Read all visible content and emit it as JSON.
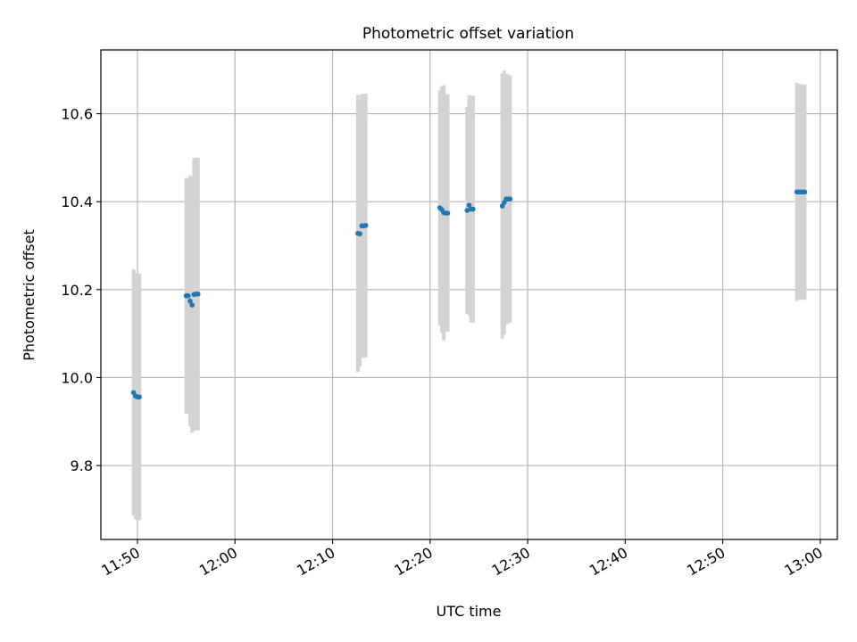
{
  "chart_data": {
    "type": "scatter",
    "title": "Photometric offset variation",
    "xlabel": "UTC time",
    "ylabel": "Photometric offset",
    "x_unit": "minutes",
    "xlim": [
      "11:46:15",
      "13:01:45"
    ],
    "ylim": [
      9.632,
      10.745
    ],
    "x_ticks": [
      "11:50",
      "12:00",
      "12:10",
      "12:20",
      "12:30",
      "12:40",
      "12:50",
      "13:00"
    ],
    "y_ticks": [
      "9.8",
      "10.0",
      "10.2",
      "10.4",
      "10.6"
    ],
    "grid": true,
    "series": [
      {
        "marker_color": "#1f77b4",
        "errorbar_color": "#d3d3d3",
        "points": [
          {
            "x": "11:49:36",
            "y": 9.966,
            "err": 0.28
          },
          {
            "x": "11:49:48",
            "y": 9.958,
            "err": 0.28
          },
          {
            "x": "11:50:00",
            "y": 9.956,
            "err": 0.28
          },
          {
            "x": "11:50:12",
            "y": 9.956,
            "err": 0.28
          },
          {
            "x": "11:55:00",
            "y": 10.186,
            "err": 0.268
          },
          {
            "x": "11:55:12",
            "y": 10.186,
            "err": 0.268
          },
          {
            "x": "11:55:24",
            "y": 10.174,
            "err": 0.285
          },
          {
            "x": "11:55:36",
            "y": 10.165,
            "err": 0.29
          },
          {
            "x": "11:55:48",
            "y": 10.189,
            "err": 0.31
          },
          {
            "x": "11:56:00",
            "y": 10.19,
            "err": 0.31
          },
          {
            "x": "11:56:12",
            "y": 10.19,
            "err": 0.31
          },
          {
            "x": "12:12:36",
            "y": 10.328,
            "err": 0.315
          },
          {
            "x": "12:12:48",
            "y": 10.327,
            "err": 0.302
          },
          {
            "x": "12:13:00",
            "y": 10.345,
            "err": 0.3
          },
          {
            "x": "12:13:12",
            "y": 10.345,
            "err": 0.3
          },
          {
            "x": "12:13:24",
            "y": 10.346,
            "err": 0.3
          },
          {
            "x": "12:21:00",
            "y": 10.386,
            "err": 0.267
          },
          {
            "x": "12:21:12",
            "y": 10.382,
            "err": 0.28
          },
          {
            "x": "12:21:24",
            "y": 10.375,
            "err": 0.29
          },
          {
            "x": "12:21:36",
            "y": 10.374,
            "err": 0.27
          },
          {
            "x": "12:21:48",
            "y": 10.374,
            "err": 0.27
          },
          {
            "x": "12:23:48",
            "y": 10.38,
            "err": 0.235
          },
          {
            "x": "12:24:00",
            "y": 10.392,
            "err": 0.25
          },
          {
            "x": "12:24:12",
            "y": 10.383,
            "err": 0.258
          },
          {
            "x": "12:24:24",
            "y": 10.383,
            "err": 0.258
          },
          {
            "x": "12:27:24",
            "y": 10.39,
            "err": 0.302
          },
          {
            "x": "12:27:36",
            "y": 10.398,
            "err": 0.3
          },
          {
            "x": "12:27:48",
            "y": 10.406,
            "err": 0.285
          },
          {
            "x": "12:28:00",
            "y": 10.406,
            "err": 0.283
          },
          {
            "x": "12:28:12",
            "y": 10.406,
            "err": 0.281
          },
          {
            "x": "12:57:36",
            "y": 10.422,
            "err": 0.248
          },
          {
            "x": "12:57:48",
            "y": 10.422,
            "err": 0.245
          },
          {
            "x": "12:58:00",
            "y": 10.422,
            "err": 0.245
          },
          {
            "x": "12:58:12",
            "y": 10.422,
            "err": 0.245
          },
          {
            "x": "12:58:24",
            "y": 10.422,
            "err": 0.245
          }
        ]
      }
    ]
  }
}
